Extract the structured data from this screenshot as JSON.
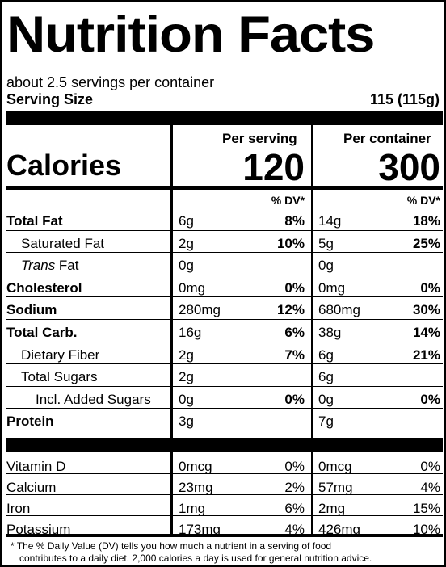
{
  "label": {
    "title": "Nutrition Facts",
    "servings": "about 2.5 servings per container",
    "serving_size_label": "Serving Size",
    "serving_size_value": "115 (115g)"
  },
  "calories": {
    "label": "Calories",
    "per_serving_header": "Per serving",
    "per_container_header": "Per container",
    "per_serving_value": "120",
    "per_container_value": "300",
    "dv_header": "% DV*"
  },
  "nutrients": [
    {
      "name": "Total Fat",
      "bold": true,
      "italic_prefix": "",
      "serving_amt": "6g",
      "serving_dv": "8%",
      "container_amt": "14g",
      "container_dv": "18%"
    },
    {
      "name": "Saturated Fat",
      "bold": false,
      "italic_prefix": "",
      "serving_amt": "2g",
      "serving_dv": "10%",
      "container_amt": "5g",
      "container_dv": "25%"
    },
    {
      "name": " Fat",
      "bold": false,
      "italic_prefix": "Trans",
      "serving_amt": "0g",
      "serving_dv": "",
      "container_amt": "0g",
      "container_dv": ""
    },
    {
      "name": "Cholesterol",
      "bold": true,
      "italic_prefix": "",
      "serving_amt": "0mg",
      "serving_dv": "0%",
      "container_amt": "0mg",
      "container_dv": "0%"
    },
    {
      "name": "Sodium",
      "bold": true,
      "italic_prefix": "",
      "serving_amt": "280mg",
      "serving_dv": "12%",
      "container_amt": "680mg",
      "container_dv": "30%"
    },
    {
      "name": "Total Carb.",
      "bold": true,
      "italic_prefix": "",
      "serving_amt": "16g",
      "serving_dv": "6%",
      "container_amt": "38g",
      "container_dv": "14%"
    },
    {
      "name": "Dietary Fiber",
      "bold": false,
      "italic_prefix": "",
      "serving_amt": "2g",
      "serving_dv": "7%",
      "container_amt": "6g",
      "container_dv": "21%"
    },
    {
      "name": "Total Sugars",
      "bold": false,
      "italic_prefix": "",
      "serving_amt": "2g",
      "serving_dv": "",
      "container_amt": "6g",
      "container_dv": ""
    },
    {
      "name": "Incl. Added Sugars",
      "bold": false,
      "italic_prefix": "",
      "serving_amt": "0g",
      "serving_dv": "0%",
      "container_amt": "0g",
      "container_dv": "0%"
    },
    {
      "name": "Protein",
      "bold": true,
      "italic_prefix": "",
      "serving_amt": "3g",
      "serving_dv": "",
      "container_amt": "7g",
      "container_dv": ""
    }
  ],
  "vitamins": [
    {
      "name": "Vitamin D",
      "serving_amt": "0mcg",
      "serving_dv": "0%",
      "container_amt": "0mcg",
      "container_dv": "0%"
    },
    {
      "name": "Calcium",
      "serving_amt": "23mg",
      "serving_dv": "2%",
      "container_amt": "57mg",
      "container_dv": "4%"
    },
    {
      "name": "Iron",
      "serving_amt": "1mg",
      "serving_dv": "6%",
      "container_amt": "2mg",
      "container_dv": "15%"
    },
    {
      "name": "Potassium",
      "serving_amt": "173mg",
      "serving_dv": "4%",
      "container_amt": "426mg",
      "container_dv": "10%"
    }
  ],
  "footnote": {
    "line1": "* The % Daily Value (DV) tells you how much a nutrient in a serving of food",
    "line2": "contributes to a daily diet. 2,000 calories a day is used for general nutrition advice."
  }
}
